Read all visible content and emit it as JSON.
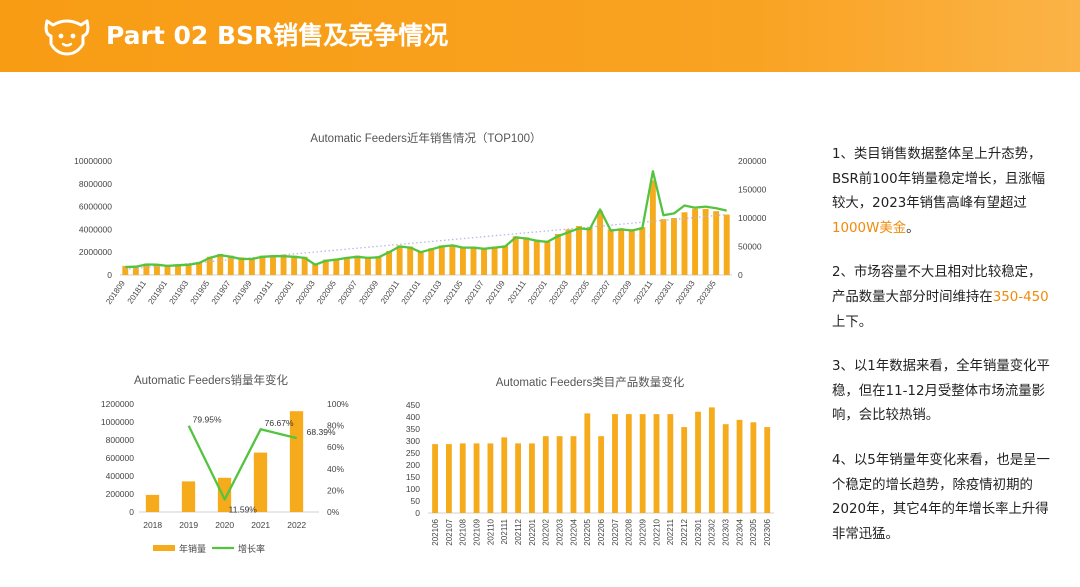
{
  "header": {
    "title": "Part 02  BSR销售及竞争情况"
  },
  "icons": {
    "logo": "dog-face-icon"
  },
  "colors": {
    "accent": "#f89c14",
    "bar": "#f5ab1c",
    "line": "#53c43f",
    "trend": "#b8b8e8"
  },
  "chart_data": [
    {
      "type": "bar",
      "title": "Automatic Feeders近年销售情况（TOP100）",
      "x": [
        "201809",
        "201810",
        "201811",
        "201812",
        "201901",
        "201902",
        "201903",
        "201904",
        "201905",
        "201906",
        "201907",
        "201908",
        "201909",
        "201910",
        "201911",
        "201912",
        "202001",
        "202002",
        "202003",
        "202004",
        "202005",
        "202006",
        "202007",
        "202008",
        "202009",
        "202010",
        "202011",
        "202012",
        "202101",
        "202102",
        "202103",
        "202104",
        "202105",
        "202106",
        "202107",
        "202108",
        "202109",
        "202110",
        "202111",
        "202112",
        "202201",
        "202202",
        "202203",
        "202204",
        "202205",
        "202206",
        "202207",
        "202208",
        "202209",
        "202210",
        "202211",
        "202212",
        "202301",
        "202302",
        "202303",
        "202304",
        "202305",
        "202306"
      ],
      "x_tick_labels": [
        "201809",
        "201811",
        "201901",
        "201903",
        "201905",
        "201907",
        "201909",
        "201911",
        "202001",
        "202003",
        "202005",
        "202007",
        "202009",
        "202011",
        "202101",
        "202103",
        "202105",
        "202107",
        "202109",
        "202111",
        "202201",
        "202203",
        "202205",
        "202207",
        "202209",
        "202211",
        "202301",
        "202303",
        "202305"
      ],
      "series": [
        {
          "kind": "bar",
          "axis": "left",
          "values": [
            800000,
            820000,
            1000000,
            950000,
            900000,
            950000,
            1000000,
            1150000,
            1600000,
            1850000,
            1700000,
            1550000,
            1500000,
            1700000,
            1750000,
            1800000,
            1700000,
            1600000,
            1000000,
            1350000,
            1450000,
            1550000,
            1700000,
            1600000,
            1650000,
            2100000,
            2600000,
            2500000,
            2100000,
            2350000,
            2600000,
            2650000,
            2500000,
            2500000,
            2400000,
            2500000,
            2600000,
            3400000,
            3300000,
            3100000,
            3000000,
            3600000,
            4000000,
            4300000,
            4200000,
            5600000,
            4000000,
            4100000,
            4000000,
            4200000,
            8300000,
            4900000,
            5000000,
            5500000,
            5800000,
            5800000,
            5600000,
            5300000
          ]
        },
        {
          "kind": "line",
          "axis": "right",
          "values": [
            14000,
            14500,
            18500,
            18000,
            16000,
            17000,
            18000,
            21000,
            30000,
            35000,
            32000,
            28000,
            28000,
            32000,
            33000,
            33000,
            32000,
            30000,
            18000,
            25000,
            27000,
            30000,
            32000,
            30000,
            31000,
            40000,
            50000,
            48000,
            40000,
            45000,
            50000,
            52000,
            48000,
            48000,
            46000,
            48000,
            50000,
            66000,
            64000,
            60000,
            58000,
            68000,
            75000,
            82000,
            80000,
            115000,
            78000,
            80000,
            78000,
            82000,
            182000,
            105000,
            108000,
            122000,
            118000,
            120000,
            117000,
            113000
          ]
        }
      ],
      "trendline": {
        "style": "dotted",
        "from": 500000,
        "to": 5300000
      },
      "y_left": {
        "min": 0,
        "max": 10000000,
        "ticks": [
          "0",
          "2000000",
          "4000000",
          "6000000",
          "8000000",
          "10000000"
        ]
      },
      "y_right": {
        "min": 0,
        "max": 200000,
        "ticks": [
          "0",
          "50000",
          "100000",
          "150000",
          "200000"
        ]
      },
      "grid": false
    },
    {
      "type": "bar",
      "title": "Automatic Feeders销量年变化",
      "categories": [
        "2018",
        "2019",
        "2020",
        "2021",
        "2022"
      ],
      "series": [
        {
          "name": "年销量",
          "kind": "bar",
          "axis": "left",
          "values": [
            190000,
            340000,
            380000,
            660000,
            1120000
          ]
        },
        {
          "name": "增长率",
          "kind": "line",
          "axis": "right",
          "values": [
            null,
            79.95,
            11.59,
            76.67,
            68.39
          ],
          "labels": [
            "",
            "79.95%",
            "11.59%",
            "76.67%",
            "68.39%"
          ]
        }
      ],
      "y_left": {
        "min": 0,
        "max": 1200000,
        "ticks": [
          "0",
          "200000",
          "400000",
          "600000",
          "800000",
          "1000000",
          "1200000"
        ]
      },
      "y_right": {
        "min": 0,
        "max": 100,
        "ticks": [
          "0%",
          "20%",
          "40%",
          "60%",
          "80%",
          "100%"
        ]
      },
      "legend": "bottom",
      "grid": false
    },
    {
      "type": "bar",
      "title": "Automatic Feeders类目产品数量变化",
      "categories": [
        "202106",
        "202107",
        "202108",
        "202109",
        "202110",
        "202111",
        "202112",
        "202201",
        "202202",
        "202203",
        "202204",
        "202205",
        "202206",
        "202207",
        "202208",
        "202209",
        "202210",
        "202211",
        "202212",
        "202301",
        "202302",
        "202303",
        "202304",
        "202305",
        "202306"
      ],
      "values": [
        287,
        287,
        290,
        290,
        290,
        315,
        290,
        290,
        320,
        320,
        320,
        415,
        320,
        412,
        412,
        412,
        412,
        412,
        358,
        422,
        440,
        370,
        388,
        378,
        358
      ],
      "y": {
        "min": 0,
        "max": 450,
        "ticks": [
          "0",
          "50",
          "100",
          "150",
          "200",
          "250",
          "300",
          "350",
          "400",
          "450"
        ]
      },
      "grid": false
    }
  ],
  "notes": [
    {
      "text": "1、类目销售数据整体呈上升态势，BSR前100年销量稳定增长，且涨幅较大，2023年销售高峰有望超过",
      "highlight": "1000W美金",
      "tail": "。"
    },
    {
      "text": "2、市场容量不大且相对比较稳定，产品数量大部分时间维持在",
      "highlight": "350-450",
      "tail": "上下。"
    },
    {
      "text": "3、以1年数据来看，全年销量变化平稳，但在11-12月受整体市场流量影响，会比较热销。",
      "highlight": "",
      "tail": ""
    },
    {
      "text": "4、以5年销量年变化来看，也是呈一个稳定的增长趋势，除疫情初期的2020年，其它4年的年增长率上升得非常迅猛。",
      "highlight": "",
      "tail": ""
    }
  ]
}
